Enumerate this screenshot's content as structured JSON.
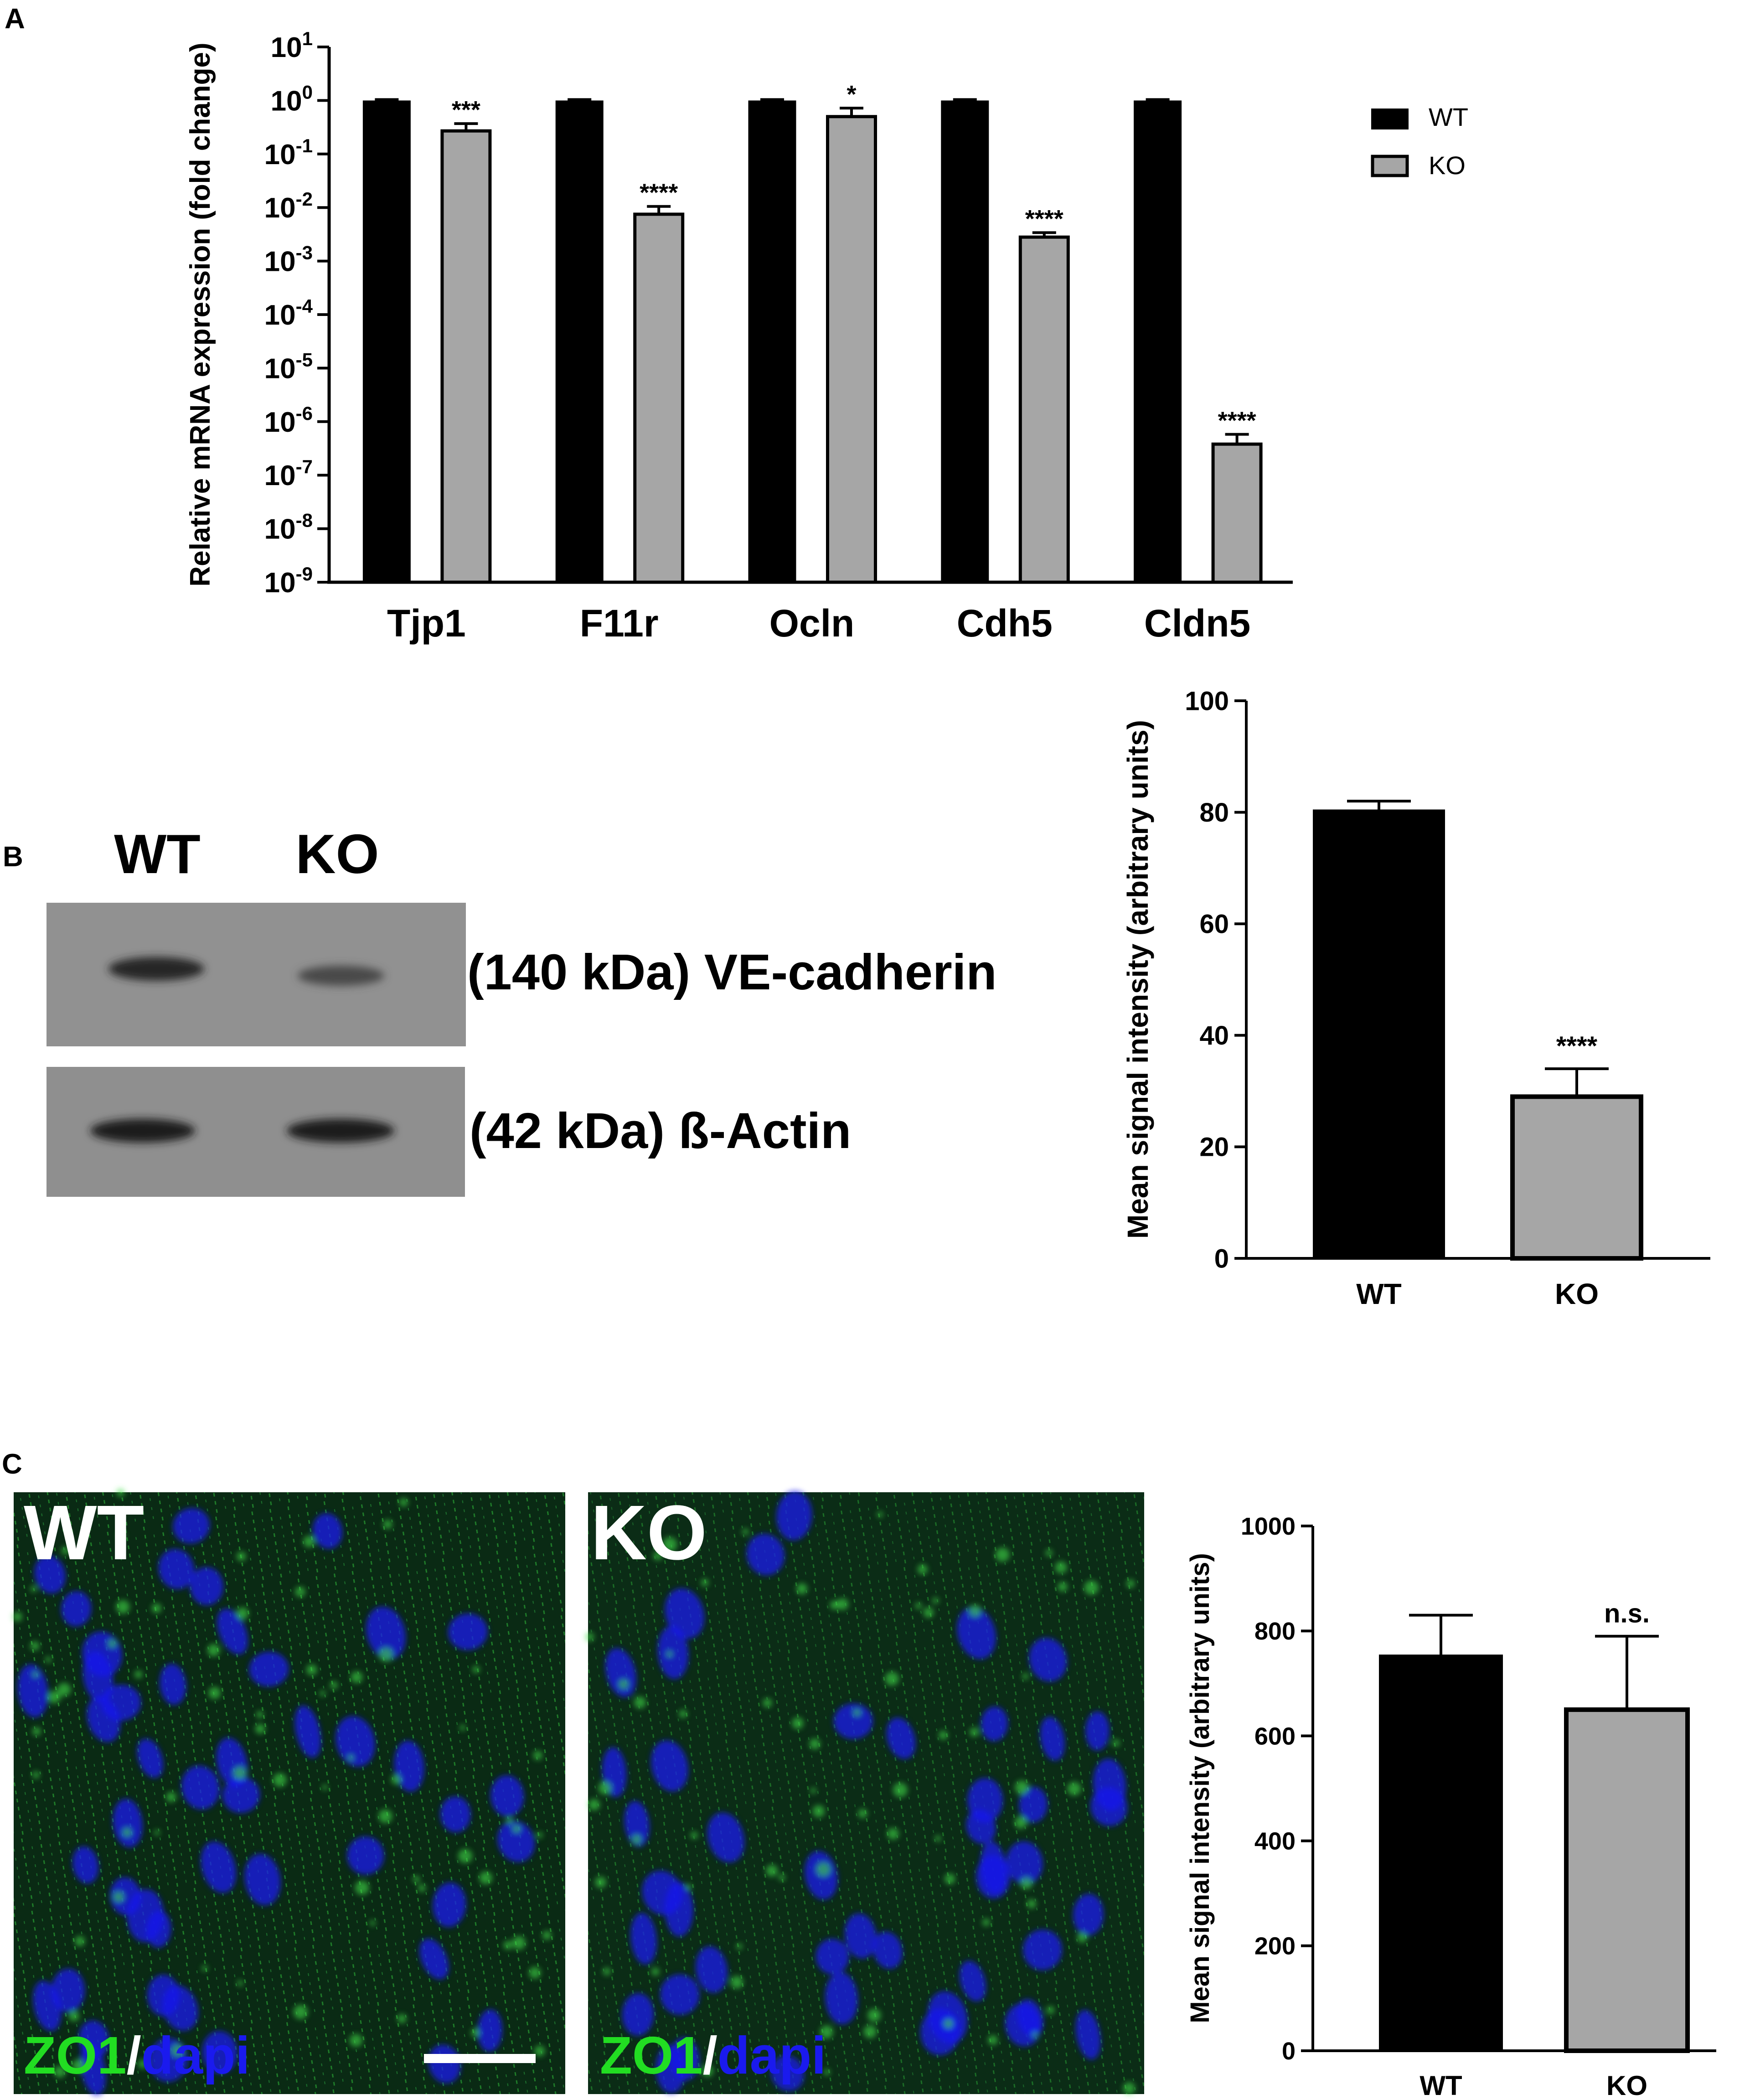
{
  "panels": {
    "A": {
      "letter": "A"
    },
    "B": {
      "letter": "B",
      "blot_lane_labels": [
        "WT",
        "KO"
      ],
      "blot_band_labels": [
        "(140 kDa) VE-cadherin",
        "(42 kDa) ß-Actin"
      ]
    },
    "C": {
      "letter": "C",
      "image_labels": [
        "WT",
        "KO"
      ],
      "stain_label": {
        "marker": "ZO1",
        "separator": "/",
        "counterstain": "dapi"
      }
    }
  },
  "colors": {
    "wt": "#000000",
    "ko": "#a6a6a6",
    "zo1": "#22dd22",
    "dapi": "#1a1aee"
  },
  "chart_data": [
    {
      "id": "A",
      "type": "bar",
      "y_scale": "log",
      "ylabel": "Relative mRNA expression (fold change)",
      "xlabel": "",
      "categories": [
        "Tjp1",
        "F11r",
        "Ocln",
        "Cdh5",
        "Cldn5"
      ],
      "ylim": [
        1e-09,
        10
      ],
      "yticks": [
        {
          "value": 10.0,
          "base": "10",
          "exp": "1"
        },
        {
          "value": 1.0,
          "base": "10",
          "exp": "0"
        },
        {
          "value": 0.1,
          "base": "10",
          "exp": "-1"
        },
        {
          "value": 0.01,
          "base": "10",
          "exp": "-2"
        },
        {
          "value": 0.001,
          "base": "10",
          "exp": "-3"
        },
        {
          "value": 0.0001,
          "base": "10",
          "exp": "-4"
        },
        {
          "value": 1e-05,
          "base": "10",
          "exp": "-5"
        },
        {
          "value": 1e-06,
          "base": "10",
          "exp": "-6"
        },
        {
          "value": 1e-07,
          "base": "10",
          "exp": "-7"
        },
        {
          "value": 1e-08,
          "base": "10",
          "exp": "-8"
        },
        {
          "value": 1e-09,
          "base": "10",
          "exp": "-9"
        }
      ],
      "legend": {
        "placement": "top-right",
        "entries": [
          "WT",
          "KO"
        ]
      },
      "series": [
        {
          "name": "WT",
          "values": [
            1,
            1,
            1,
            1,
            1
          ],
          "errors": [
            0.04,
            0.04,
            0.04,
            0.04,
            0.04
          ]
        },
        {
          "name": "KO",
          "values": [
            0.27,
            0.0075,
            0.5,
            0.0028,
            3.8e-07
          ],
          "errors": [
            0.1,
            0.003,
            0.22,
            0.0006,
            2e-07
          ],
          "significance": [
            "***",
            "****",
            "*",
            "****",
            "****"
          ]
        }
      ]
    },
    {
      "id": "B",
      "type": "bar",
      "ylabel": "Mean signal intensity (arbitrary units)",
      "xlabel": "",
      "categories": [
        "WT",
        "KO"
      ],
      "ylim": [
        0,
        100
      ],
      "yticks": [
        0,
        20,
        40,
        60,
        80,
        100
      ],
      "values": [
        80.5,
        29
      ],
      "errors": [
        1.5,
        5
      ],
      "significance": [
        "",
        "****"
      ]
    },
    {
      "id": "C",
      "type": "bar",
      "ylabel": "Mean signal intensity (arbitrary units)",
      "xlabel": "",
      "categories": [
        "WT",
        "KO"
      ],
      "ylim": [
        0,
        1000
      ],
      "yticks": [
        0,
        200,
        400,
        600,
        800,
        1000
      ],
      "values": [
        755,
        650
      ],
      "errors": [
        75,
        140
      ],
      "significance": [
        "",
        "n.s."
      ]
    }
  ]
}
